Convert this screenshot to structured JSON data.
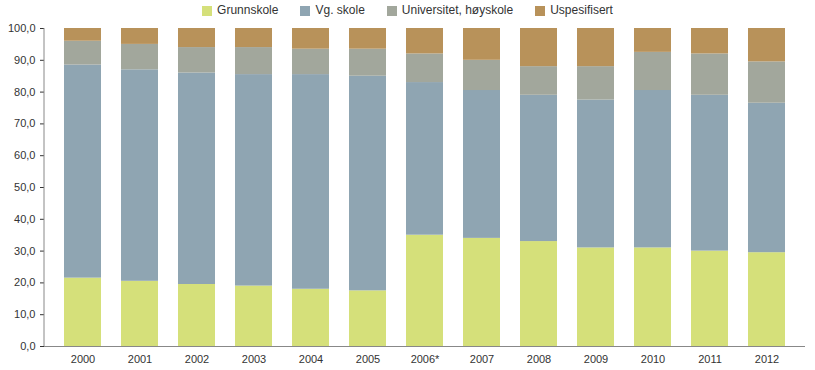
{
  "chart_data": {
    "type": "bar",
    "stacked": true,
    "grid": false,
    "legend": "top",
    "categories": [
      "2000",
      "2001",
      "2002",
      "2003",
      "2004",
      "2005",
      "2006*",
      "2007",
      "2008",
      "2009",
      "2010",
      "2011",
      "2012"
    ],
    "series": [
      {
        "name": "Grunnskole",
        "color": "#d5e07a",
        "values": [
          21.5,
          20.5,
          19.5,
          19,
          18,
          17.5,
          35,
          34,
          33,
          31,
          31,
          30,
          29.5
        ]
      },
      {
        "name": "Vg. skole",
        "color": "#8fa5b2",
        "values": [
          67,
          66.5,
          66.5,
          66.5,
          67.5,
          67.5,
          48,
          46.5,
          46,
          46.5,
          49.5,
          49,
          47
        ]
      },
      {
        "name": "Universitet, høyskole",
        "color": "#a2a79c",
        "values": [
          7.5,
          8,
          8,
          8.5,
          8,
          8.5,
          9,
          9.5,
          9,
          10.5,
          12,
          13,
          13
        ]
      },
      {
        "name": "Uspesifisert",
        "color": "#b8925a",
        "values": [
          4,
          5,
          6,
          6,
          6.5,
          6.5,
          8,
          10,
          12,
          12,
          7.5,
          8,
          10.5
        ]
      }
    ],
    "ylim": [
      0,
      100
    ],
    "yticks": [
      {
        "value": 0,
        "label": "0,0"
      },
      {
        "value": 10,
        "label": "10,0"
      },
      {
        "value": 20,
        "label": "20,0"
      },
      {
        "value": 30,
        "label": "30,0"
      },
      {
        "value": 40,
        "label": "40,0"
      },
      {
        "value": 50,
        "label": "50,0"
      },
      {
        "value": 60,
        "label": "60,0"
      },
      {
        "value": 70,
        "label": "70,0"
      },
      {
        "value": 80,
        "label": "80,0"
      },
      {
        "value": 90,
        "label": "90,0"
      },
      {
        "value": 100,
        "label": "100,0"
      }
    ]
  }
}
